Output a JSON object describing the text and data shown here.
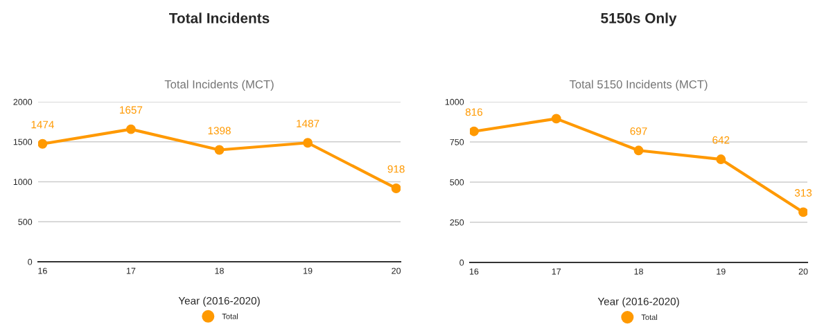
{
  "chart_data": [
    {
      "type": "line",
      "title": "Total Incidents",
      "subtitle": "Total Incidents (MCT)",
      "xlabel": "Year (2016-2020)",
      "categories": [
        "16",
        "17",
        "18",
        "19",
        "20"
      ],
      "series": [
        {
          "name": "Total",
          "color": "#ff9900",
          "values": [
            1474,
            1657,
            1398,
            1487,
            918
          ],
          "value_labels": [
            "1474",
            "1657",
            "1398",
            "1487",
            "918"
          ]
        }
      ],
      "ylim": [
        0,
        2000
      ],
      "yticks": [
        0,
        500,
        1000,
        1500,
        2000
      ],
      "grid": "y",
      "legend": "bottom",
      "marker": "circle",
      "line_style": "solid"
    },
    {
      "type": "line",
      "title": "5150s Only",
      "subtitle": "Total 5150 Incidents (MCT)",
      "xlabel": "Year (2016-2020)",
      "categories": [
        "16",
        "17",
        "18",
        "19",
        "20"
      ],
      "series": [
        {
          "name": "Total",
          "color": "#ff9900",
          "values": [
            816,
            895,
            697,
            642,
            313
          ],
          "value_labels": [
            "816",
            null,
            "697",
            "642",
            "313"
          ]
        }
      ],
      "ylim": [
        0,
        1000
      ],
      "yticks": [
        0,
        250,
        500,
        750,
        1000
      ],
      "grid": "y",
      "legend": "bottom",
      "marker": "circle",
      "line_style": "solid"
    }
  ]
}
